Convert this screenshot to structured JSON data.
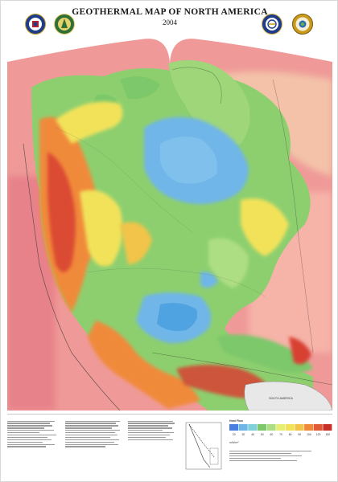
{
  "map": {
    "title": "GEOTHERMAL MAP OF NORTH AMERICA",
    "year": "2004",
    "inset_label": "SOUTH AMERICA",
    "legend_heading": "Heat Flow",
    "legend_units": "mW/m²",
    "legend_scale": [
      "20",
      "30",
      "40",
      "50",
      "60",
      "70",
      "80",
      "90",
      "100",
      "120",
      "150"
    ],
    "colors": {
      "ocean_hot": "#e8828a",
      "ocean_warm": "#f3a0a0",
      "cool_shield": "#6fb6e8",
      "mid_green": "#7cc86a",
      "warm_yellow": "#f2e25a",
      "hot_orange": "#f08a3a",
      "hot_red": "#d84030"
    },
    "seals": {
      "left": [
        "agency-seal-icon",
        "doe-seal-icon"
      ],
      "right": [
        "society-seal-icon",
        "foundation-seal-icon"
      ]
    }
  }
}
